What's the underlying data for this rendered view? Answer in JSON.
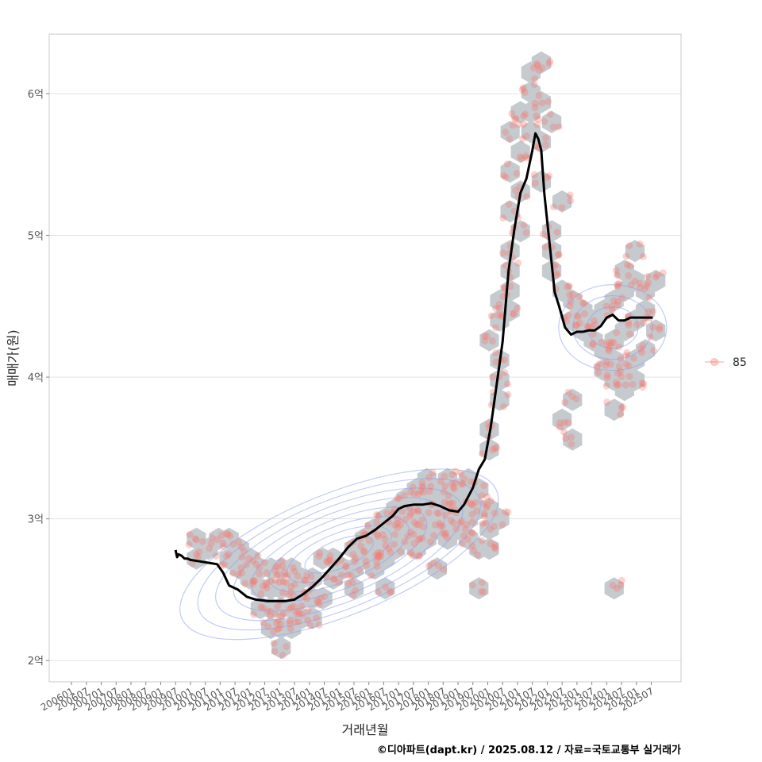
{
  "chart_data": {
    "type": "scatter",
    "xlabel": "거래년월",
    "ylabel": "매매가(원)",
    "caption": "©디아파트(dapt.kr) / 2025.08.12 / 자료=국토교통부 실거래가",
    "legend": {
      "position": "right",
      "entries": [
        "85"
      ]
    },
    "x_range": [
      2005.25,
      2026.5
    ],
    "ylim": [
      1.85,
      6.42
    ],
    "y_ticks": [
      {
        "value": 2,
        "label": "2억"
      },
      {
        "value": 3,
        "label": "3억"
      },
      {
        "value": 4,
        "label": "4억"
      },
      {
        "value": 5,
        "label": "5억"
      },
      {
        "value": 6,
        "label": "6억"
      }
    ],
    "x_ticks": [
      {
        "value": 2006.0,
        "label": "200601"
      },
      {
        "value": 2006.5,
        "label": "200607"
      },
      {
        "value": 2007.0,
        "label": "200701"
      },
      {
        "value": 2007.5,
        "label": "200707"
      },
      {
        "value": 2008.0,
        "label": "200801"
      },
      {
        "value": 2008.5,
        "label": "200807"
      },
      {
        "value": 2009.0,
        "label": "200901"
      },
      {
        "value": 2009.5,
        "label": "200907"
      },
      {
        "value": 2010.0,
        "label": "201001"
      },
      {
        "value": 2010.5,
        "label": "201007"
      },
      {
        "value": 2011.0,
        "label": "201101"
      },
      {
        "value": 2011.5,
        "label": "201107"
      },
      {
        "value": 2012.0,
        "label": "201201"
      },
      {
        "value": 2012.5,
        "label": "201207"
      },
      {
        "value": 2013.0,
        "label": "201301"
      },
      {
        "value": 2013.5,
        "label": "201307"
      },
      {
        "value": 2014.0,
        "label": "201401"
      },
      {
        "value": 2014.5,
        "label": "201407"
      },
      {
        "value": 2015.0,
        "label": "201501"
      },
      {
        "value": 2015.5,
        "label": "201507"
      },
      {
        "value": 2016.0,
        "label": "201601"
      },
      {
        "value": 2016.5,
        "label": "201607"
      },
      {
        "value": 2017.0,
        "label": "201701"
      },
      {
        "value": 2017.5,
        "label": "201707"
      },
      {
        "value": 2018.0,
        "label": "201801"
      },
      {
        "value": 2018.5,
        "label": "201807"
      },
      {
        "value": 2019.0,
        "label": "201901"
      },
      {
        "value": 2019.5,
        "label": "201907"
      },
      {
        "value": 2020.0,
        "label": "202001"
      },
      {
        "value": 2020.5,
        "label": "202007"
      },
      {
        "value": 2021.0,
        "label": "202101"
      },
      {
        "value": 2021.5,
        "label": "202107"
      },
      {
        "value": 2022.0,
        "label": "202201"
      },
      {
        "value": 2022.5,
        "label": "202207"
      },
      {
        "value": 2023.0,
        "label": "202301"
      },
      {
        "value": 2023.5,
        "label": "202307"
      },
      {
        "value": 2024.0,
        "label": "202401"
      },
      {
        "value": 2024.5,
        "label": "202407"
      },
      {
        "value": 2025.0,
        "label": "202501"
      },
      {
        "value": 2025.5,
        "label": "202507"
      }
    ],
    "trend_line": {
      "name": "moving average",
      "x": [
        2009.5,
        2009.55,
        2009.6,
        2009.7,
        2009.8,
        2009.9,
        2010.0,
        2010.3,
        2010.6,
        2010.9,
        2011.1,
        2011.3,
        2011.6,
        2011.9,
        2012.2,
        2012.6,
        2012.9,
        2013.2,
        2013.5,
        2013.8,
        2014.1,
        2014.4,
        2014.7,
        2015.0,
        2015.3,
        2015.6,
        2015.9,
        2016.2,
        2016.5,
        2016.8,
        2017.0,
        2017.2,
        2017.5,
        2017.8,
        2018.1,
        2018.4,
        2018.7,
        2019.0,
        2019.2,
        2019.5,
        2019.7,
        2019.9,
        2020.1,
        2020.3,
        2020.5,
        2020.7,
        2020.9,
        2021.1,
        2021.3,
        2021.5,
        2021.6,
        2021.7,
        2021.8,
        2021.9,
        2022.0,
        2022.1,
        2022.25,
        2022.4,
        2022.6,
        2022.8,
        2023.0,
        2023.2,
        2023.4,
        2023.6,
        2023.8,
        2024.0,
        2024.2,
        2024.4,
        2024.6,
        2024.8,
        2025.0,
        2025.2,
        2025.4,
        2025.55
      ],
      "y": [
        2.78,
        2.73,
        2.75,
        2.74,
        2.72,
        2.72,
        2.71,
        2.7,
        2.69,
        2.68,
        2.62,
        2.53,
        2.5,
        2.45,
        2.43,
        2.42,
        2.42,
        2.42,
        2.43,
        2.47,
        2.52,
        2.58,
        2.65,
        2.72,
        2.8,
        2.86,
        2.88,
        2.92,
        2.97,
        3.02,
        3.07,
        3.09,
        3.1,
        3.1,
        3.11,
        3.09,
        3.06,
        3.05,
        3.1,
        3.22,
        3.35,
        3.42,
        3.65,
        3.95,
        4.25,
        4.75,
        5.05,
        5.3,
        5.4,
        5.6,
        5.72,
        5.68,
        5.6,
        5.3,
        5.1,
        4.9,
        4.6,
        4.5,
        4.35,
        4.3,
        4.32,
        4.32,
        4.33,
        4.33,
        4.36,
        4.42,
        4.44,
        4.4,
        4.4,
        4.42,
        4.42,
        4.42,
        4.42,
        4.42
      ]
    },
    "hex_bins": [
      [
        2010.2,
        2.86
      ],
      [
        2010.2,
        2.72
      ],
      [
        2010.6,
        2.79
      ],
      [
        2010.95,
        2.86
      ],
      [
        2011.3,
        2.86
      ],
      [
        2011.3,
        2.72
      ],
      [
        2011.65,
        2.79
      ],
      [
        2012.0,
        2.72
      ],
      [
        2012.35,
        2.65
      ],
      [
        2012.7,
        2.65
      ],
      [
        2013.05,
        2.65
      ],
      [
        2013.4,
        2.65
      ],
      [
        2011.65,
        2.65
      ],
      [
        2012.0,
        2.58
      ],
      [
        2012.35,
        2.51
      ],
      [
        2012.7,
        2.51
      ],
      [
        2013.05,
        2.51
      ],
      [
        2013.4,
        2.51
      ],
      [
        2013.75,
        2.58
      ],
      [
        2014.1,
        2.58
      ],
      [
        2012.35,
        2.37
      ],
      [
        2012.7,
        2.37
      ],
      [
        2013.05,
        2.37
      ],
      [
        2013.4,
        2.37
      ],
      [
        2013.75,
        2.44
      ],
      [
        2014.1,
        2.44
      ],
      [
        2014.45,
        2.44
      ],
      [
        2012.7,
        2.23
      ],
      [
        2013.05,
        2.23
      ],
      [
        2013.4,
        2.23
      ],
      [
        2013.75,
        2.3
      ],
      [
        2014.1,
        2.3
      ],
      [
        2013.05,
        2.09
      ],
      [
        2014.45,
        2.72
      ],
      [
        2014.8,
        2.72
      ],
      [
        2014.8,
        2.58
      ],
      [
        2015.15,
        2.65
      ],
      [
        2015.5,
        2.79
      ],
      [
        2015.5,
        2.65
      ],
      [
        2015.85,
        2.86
      ],
      [
        2015.85,
        2.72
      ],
      [
        2016.2,
        2.93
      ],
      [
        2016.2,
        2.79
      ],
      [
        2016.2,
        2.65
      ],
      [
        2016.55,
        3.0
      ],
      [
        2016.55,
        2.86
      ],
      [
        2016.55,
        2.72
      ],
      [
        2016.9,
        3.07
      ],
      [
        2016.9,
        2.93
      ],
      [
        2016.9,
        2.79
      ],
      [
        2017.25,
        3.14
      ],
      [
        2017.25,
        3.0
      ],
      [
        2017.25,
        2.86
      ],
      [
        2017.6,
        3.21
      ],
      [
        2017.6,
        3.07
      ],
      [
        2017.6,
        2.93
      ],
      [
        2017.95,
        3.28
      ],
      [
        2017.95,
        3.14
      ],
      [
        2017.95,
        3.0
      ],
      [
        2017.95,
        2.86
      ],
      [
        2018.3,
        3.21
      ],
      [
        2018.3,
        3.07
      ],
      [
        2018.3,
        2.93
      ],
      [
        2018.65,
        3.28
      ],
      [
        2018.65,
        3.14
      ],
      [
        2018.65,
        3.0
      ],
      [
        2018.65,
        2.86
      ],
      [
        2019.0,
        3.21
      ],
      [
        2019.0,
        3.07
      ],
      [
        2019.0,
        2.93
      ],
      [
        2019.35,
        3.28
      ],
      [
        2019.35,
        3.14
      ],
      [
        2019.35,
        3.0
      ],
      [
        2019.7,
        3.21
      ],
      [
        2019.7,
        3.07
      ],
      [
        2019.35,
        2.86
      ],
      [
        2019.7,
        2.79
      ],
      [
        2020.05,
        2.93
      ],
      [
        2020.05,
        3.07
      ],
      [
        2020.4,
        3.0
      ],
      [
        2015.5,
        2.51
      ],
      [
        2016.55,
        2.51
      ],
      [
        2017.6,
        2.79
      ],
      [
        2018.3,
        2.65
      ],
      [
        2019.7,
        2.51
      ],
      [
        2020.05,
        2.79
      ],
      [
        2020.05,
        3.49
      ],
      [
        2020.05,
        3.63
      ],
      [
        2020.4,
        3.84
      ],
      [
        2020.4,
        3.98
      ],
      [
        2020.4,
        4.12
      ],
      [
        2020.05,
        4.26
      ],
      [
        2020.4,
        4.4
      ],
      [
        2020.4,
        4.54
      ],
      [
        2020.75,
        4.47
      ],
      [
        2020.75,
        4.61
      ],
      [
        2020.75,
        4.75
      ],
      [
        2020.75,
        4.89
      ],
      [
        2021.1,
        5.03
      ],
      [
        2020.75,
        5.17
      ],
      [
        2021.1,
        5.31
      ],
      [
        2020.75,
        5.45
      ],
      [
        2021.1,
        5.59
      ],
      [
        2020.75,
        5.73
      ],
      [
        2021.1,
        5.87
      ],
      [
        2021.45,
        6.01
      ],
      [
        2021.45,
        6.15
      ],
      [
        2021.8,
        6.22
      ],
      [
        2021.45,
        5.73
      ],
      [
        2021.8,
        5.66
      ],
      [
        2021.45,
        5.87
      ],
      [
        2021.8,
        5.94
      ],
      [
        2022.15,
        5.8
      ],
      [
        2021.8,
        5.38
      ],
      [
        2022.15,
        5.03
      ],
      [
        2022.5,
        5.24
      ],
      [
        2022.15,
        4.89
      ],
      [
        2022.15,
        4.75
      ],
      [
        2022.5,
        4.61
      ],
      [
        2022.85,
        4.54
      ],
      [
        2023.2,
        4.47
      ],
      [
        2022.85,
        4.4
      ],
      [
        2023.2,
        4.33
      ],
      [
        2023.55,
        4.4
      ],
      [
        2023.9,
        4.47
      ],
      [
        2024.25,
        4.54
      ],
      [
        2024.6,
        4.61
      ],
      [
        2024.95,
        4.68
      ],
      [
        2025.3,
        4.61
      ],
      [
        2023.55,
        4.26
      ],
      [
        2023.9,
        4.19
      ],
      [
        2024.25,
        4.26
      ],
      [
        2024.6,
        4.33
      ],
      [
        2024.95,
        4.4
      ],
      [
        2025.3,
        4.47
      ],
      [
        2023.9,
        4.05
      ],
      [
        2024.25,
        4.12
      ],
      [
        2024.6,
        4.05
      ],
      [
        2024.95,
        4.12
      ],
      [
        2025.3,
        4.19
      ],
      [
        2024.25,
        3.98
      ],
      [
        2024.6,
        3.91
      ],
      [
        2024.95,
        3.98
      ],
      [
        2024.6,
        4.75
      ],
      [
        2024.95,
        4.89
      ],
      [
        2025.65,
        4.68
      ],
      [
        2025.65,
        4.33
      ],
      [
        2022.85,
        3.84
      ],
      [
        2022.5,
        3.7
      ],
      [
        2022.85,
        3.56
      ],
      [
        2024.25,
        3.77
      ],
      [
        2024.25,
        2.51
      ]
    ],
    "kde_center": [
      2015.0,
      2.75
    ],
    "kde_center_2": [
      2024.2,
      4.35
    ]
  }
}
